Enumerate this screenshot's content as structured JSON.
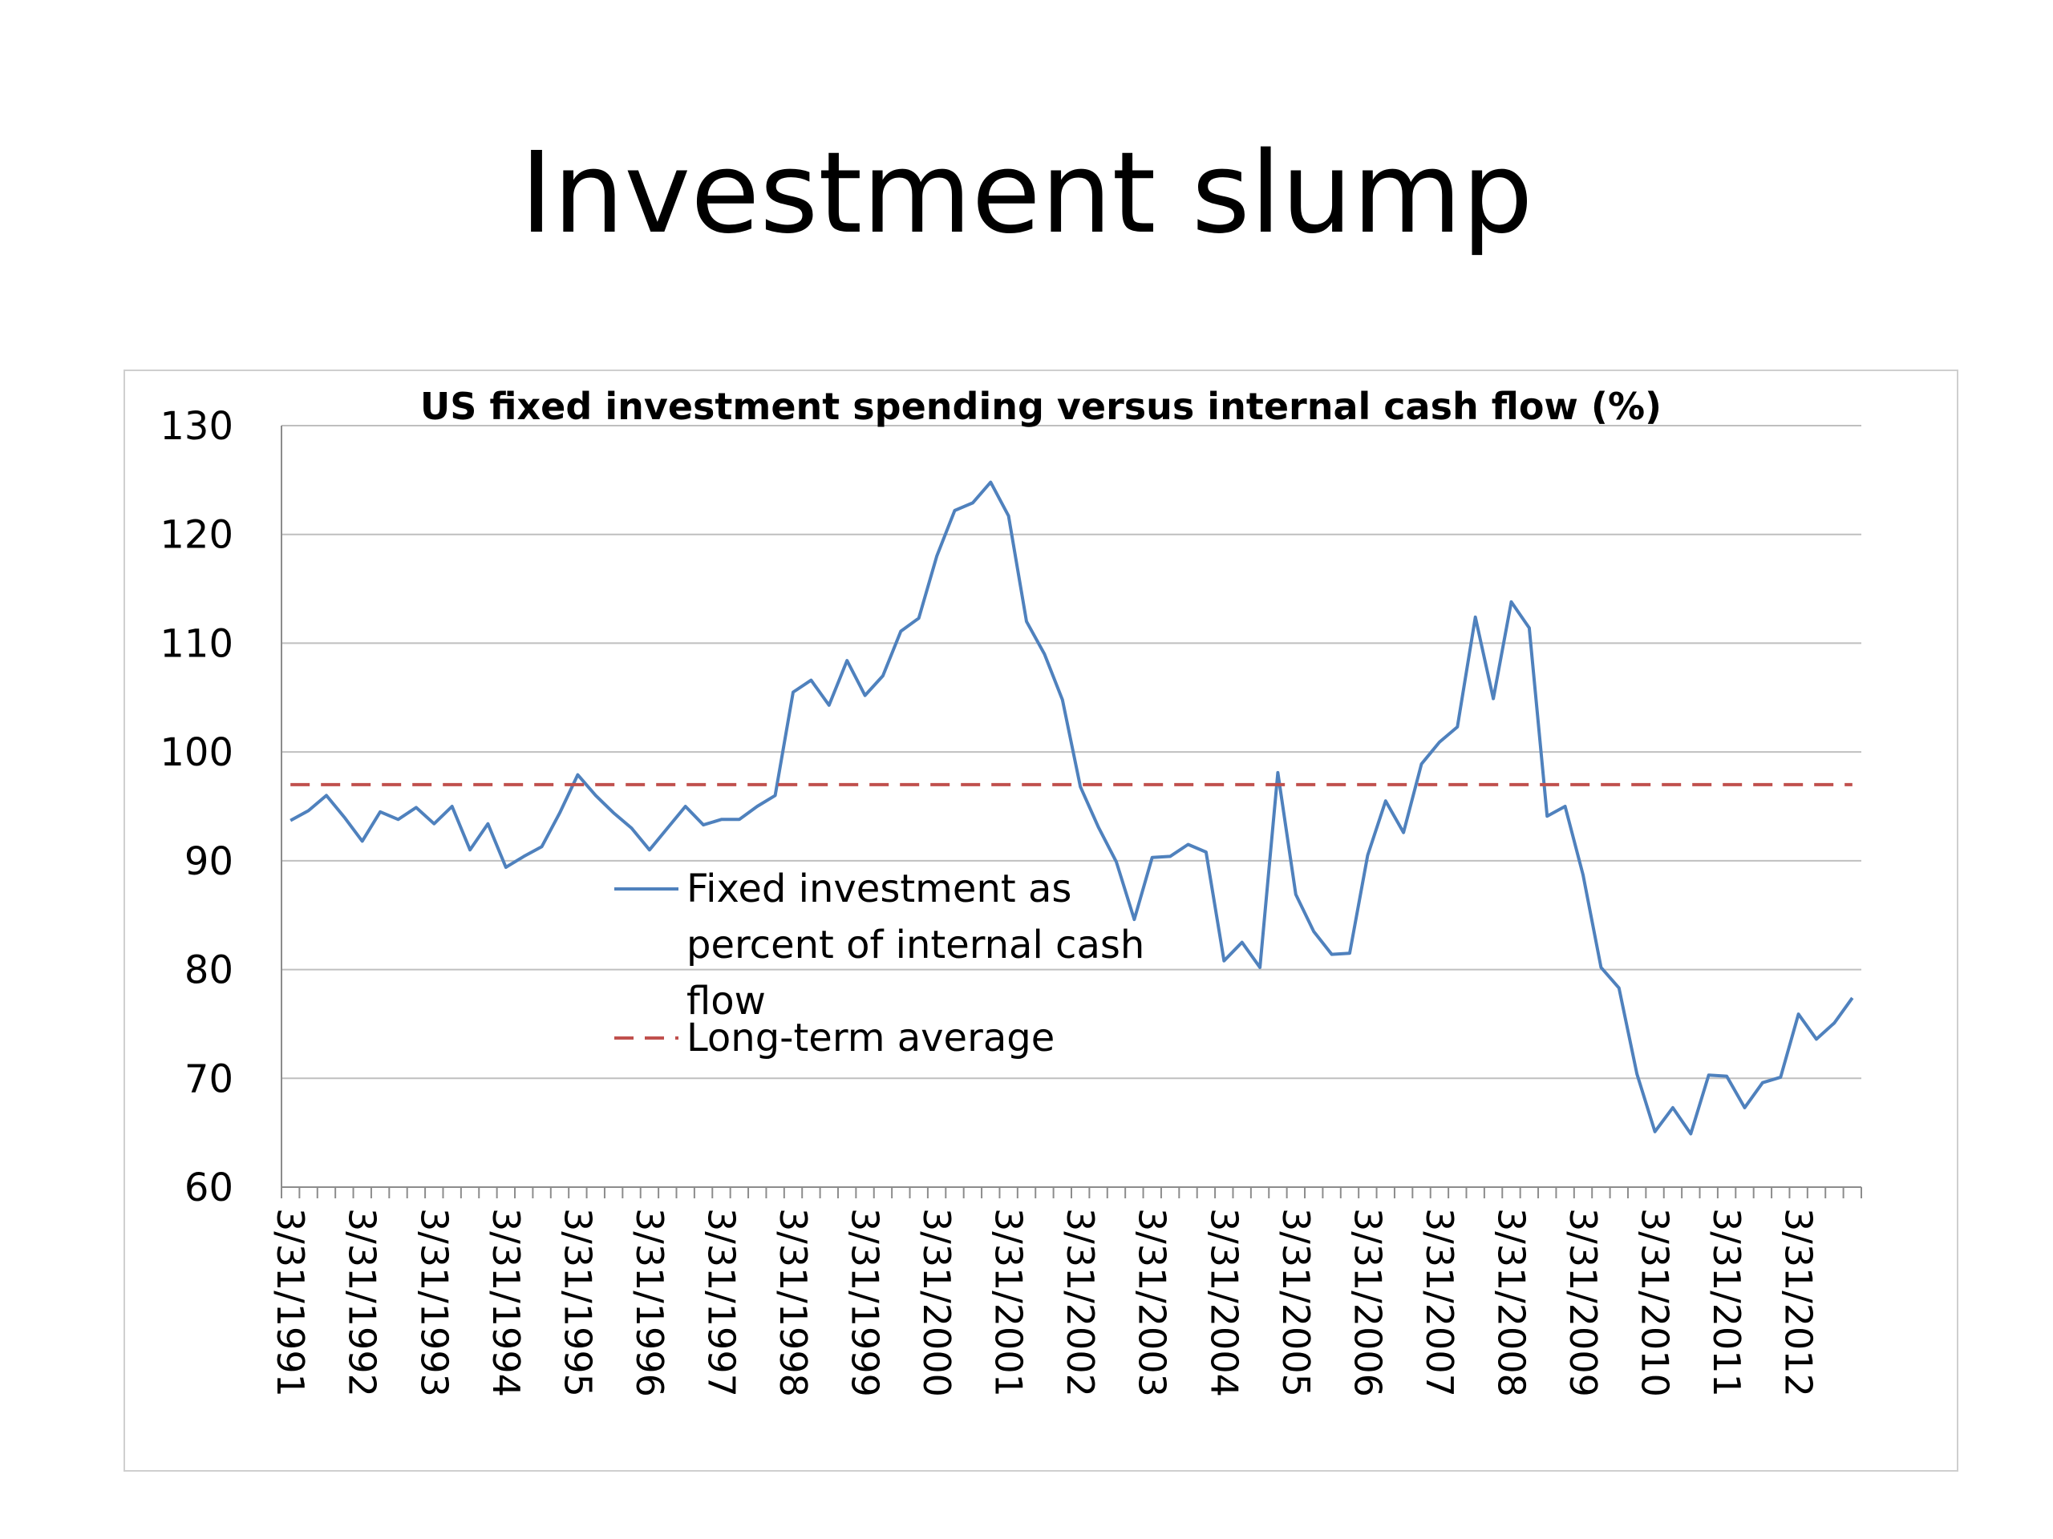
{
  "slide": {
    "title": "Investment slump"
  },
  "colors": {
    "series_line": "#4f81bd",
    "average_line": "#c0504d",
    "grid": "#bfbfbf",
    "frame": "#cfcfcf"
  },
  "chart_data": {
    "type": "line",
    "title": "US fixed investment spending versus internal cash flow (%)",
    "xlabel": "",
    "ylabel": "",
    "ylim": [
      60,
      130
    ],
    "yticks": [
      60,
      70,
      80,
      90,
      100,
      110,
      120,
      130
    ],
    "grid": true,
    "legend_position": "center-left",
    "x_start_label": "3/31/1991",
    "x_frequency": "quarterly",
    "x_tick_labels": [
      "3/31/1991",
      "3/31/1992",
      "3/31/1993",
      "3/31/1994",
      "3/31/1995",
      "3/31/1996",
      "3/31/1997",
      "3/31/1998",
      "3/31/1999",
      "3/31/2000",
      "3/31/2001",
      "3/31/2002",
      "3/31/2003",
      "3/31/2004",
      "3/31/2005",
      "3/31/2006",
      "3/31/2007",
      "3/31/2008",
      "3/31/2009",
      "3/31/2010",
      "3/31/2011",
      "3/31/2012"
    ],
    "series": [
      {
        "name": "Fixed investment as percent of internal cash flow",
        "style": "solid",
        "values": [
          93.7,
          94.6,
          96.0,
          94.0,
          91.8,
          94.5,
          93.8,
          94.9,
          93.4,
          95.0,
          91.0,
          93.4,
          89.4,
          90.4,
          91.3,
          94.4,
          97.9,
          96.0,
          94.4,
          93.0,
          91.0,
          93.0,
          95.0,
          93.3,
          93.8,
          93.8,
          95.0,
          96.0,
          105.5,
          106.6,
          104.3,
          108.4,
          105.2,
          107.0,
          111.1,
          112.3,
          118.0,
          122.2,
          122.9,
          124.8,
          121.7,
          112.0,
          109.0,
          104.8,
          96.8,
          93.1,
          89.9,
          84.6,
          90.3,
          90.4,
          91.5,
          90.8,
          80.8,
          82.5,
          80.2,
          98.1,
          86.9,
          83.5,
          81.4,
          81.5,
          90.5,
          95.5,
          92.6,
          98.9,
          100.9,
          102.3,
          112.4,
          104.9,
          113.8,
          111.4,
          94.1,
          95.0,
          88.7,
          80.2,
          78.3,
          70.4,
          65.1,
          67.3,
          64.9,
          70.3,
          70.2,
          67.3,
          69.6,
          70.1,
          75.9,
          73.6,
          75.1,
          77.4
        ]
      },
      {
        "name": "Long-term average",
        "style": "dashed",
        "value": 97.0
      }
    ]
  }
}
